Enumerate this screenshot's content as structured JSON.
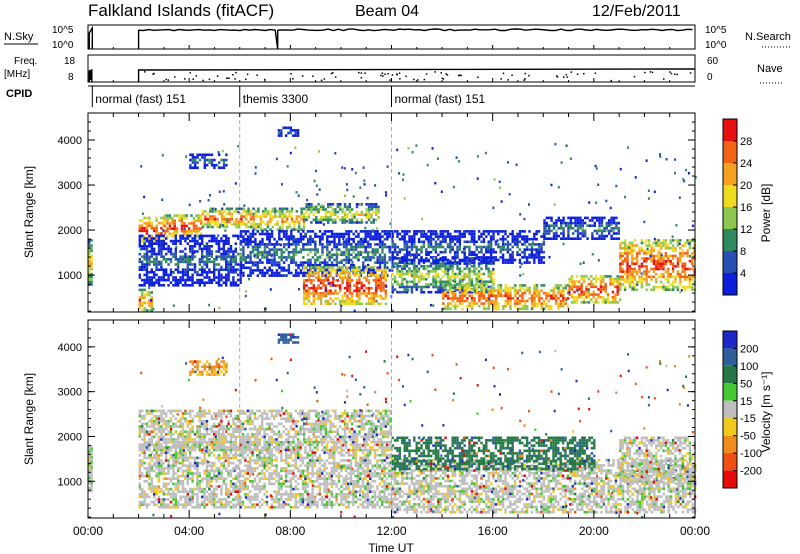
{
  "header": {
    "station": "Falkland Islands (fitACF)",
    "beam": "Beam 04",
    "date": "12/Feb/2011"
  },
  "top_panels": {
    "nsky_label": "N.Sky",
    "nsky_ticks": [
      "10^5",
      "10^0"
    ],
    "nsearch_label": "N.Search",
    "freq_label": "Freq.",
    "freq_unit": "[MHz]",
    "freq_ticks": [
      "18",
      "8"
    ],
    "nave_label": "Nave",
    "nave_ticks": [
      "60",
      "0"
    ],
    "cpid_label": "CPID"
  },
  "cpid_segments": [
    {
      "label": "normal (fast) 151",
      "start": 0.17
    },
    {
      "label": "themis 3300",
      "start": 6.0
    },
    {
      "label": "normal (fast) 151",
      "start": 12.0
    }
  ],
  "axes": {
    "xlabel": "Time UT",
    "xticks": [
      "00:00",
      "04:00",
      "08:00",
      "12:00",
      "16:00",
      "20:00",
      "00:00"
    ],
    "ylabel": "Slant Range [km]",
    "yticks": [
      "1000",
      "2000",
      "3000",
      "4000"
    ]
  },
  "colorbars": {
    "power": {
      "label": "Power [dB]",
      "ticks": [
        "4",
        "8",
        "12",
        "16",
        "20",
        "24",
        "28"
      ],
      "colors": [
        "#0a1edc",
        "#2850b4",
        "#2f8a60",
        "#8cc850",
        "#f0dc1e",
        "#f5a01e",
        "#f06414",
        "#e81010"
      ]
    },
    "velocity": {
      "label": "Velocity [m s⁻¹]",
      "ticks": [
        "200",
        "100",
        "50",
        "15",
        "-15",
        "-50",
        "-100",
        "-200"
      ],
      "colors": [
        "#1e28c8",
        "#2d5f9b",
        "#237846",
        "#46c832",
        "#bebebe",
        "#f0c81e",
        "#f08c1e",
        "#f05014",
        "#e60a0a"
      ]
    }
  },
  "chart_data": [
    {
      "type": "heatmap",
      "name": "power",
      "x_unit": "hours UT",
      "y_unit": "km",
      "xlim": [
        0,
        24
      ],
      "ylim": [
        180,
        4600
      ],
      "value_unit": "dB",
      "value_range": [
        0,
        30
      ],
      "bands": [
        {
          "t0": 0.0,
          "t1": 0.15,
          "r0": 800,
          "r1": 1800,
          "p": 20
        },
        {
          "t0": 2.0,
          "t1": 3.0,
          "r0": 1750,
          "r1": 2300,
          "p": 27
        },
        {
          "t0": 3.0,
          "t1": 4.5,
          "r0": 1850,
          "r1": 2350,
          "p": 27
        },
        {
          "t0": 4.5,
          "t1": 6.5,
          "r0": 2050,
          "r1": 2500,
          "p": 24
        },
        {
          "t0": 6.5,
          "t1": 8.5,
          "r0": 2000,
          "r1": 2500,
          "p": 22
        },
        {
          "t0": 8.5,
          "t1": 11.5,
          "r0": 2150,
          "r1": 2600,
          "p": 18
        },
        {
          "t0": 2.0,
          "t1": 6.0,
          "r0": 800,
          "r1": 1900,
          "p": 8
        },
        {
          "t0": 6.0,
          "t1": 12.0,
          "r0": 1000,
          "r1": 2000,
          "p": 10
        },
        {
          "t0": 8.5,
          "t1": 11.8,
          "r0": 350,
          "r1": 1200,
          "p": 28
        },
        {
          "t0": 12.0,
          "t1": 16.0,
          "r0": 600,
          "r1": 1400,
          "p": 16
        },
        {
          "t0": 12.0,
          "t1": 18.0,
          "r0": 1300,
          "r1": 2000,
          "p": 8
        },
        {
          "t0": 14.0,
          "t1": 19.0,
          "r0": 250,
          "r1": 800,
          "p": 26
        },
        {
          "t0": 19.0,
          "t1": 21.0,
          "r0": 400,
          "r1": 1000,
          "p": 27
        },
        {
          "t0": 21.0,
          "t1": 24.0,
          "r0": 700,
          "r1": 1800,
          "p": 27
        },
        {
          "t0": 18.0,
          "t1": 21.0,
          "r0": 1800,
          "r1": 2300,
          "p": 10
        },
        {
          "t0": 2.0,
          "t1": 2.5,
          "r0": 200,
          "r1": 700,
          "p": 24
        },
        {
          "t0": 4.0,
          "t1": 5.5,
          "r0": 3400,
          "r1": 3700,
          "p": 10
        },
        {
          "t0": 7.5,
          "t1": 8.3,
          "r0": 4100,
          "r1": 4300,
          "p": 8
        }
      ]
    },
    {
      "type": "heatmap",
      "name": "velocity",
      "x_unit": "hours UT",
      "y_unit": "km",
      "xlim": [
        0,
        24
      ],
      "ylim": [
        180,
        4600
      ],
      "value_unit": "m/s",
      "value_range": [
        -250,
        250
      ],
      "bands": [
        {
          "t0": 0.0,
          "t1": 0.15,
          "r0": 800,
          "r1": 1800,
          "v": 0
        },
        {
          "t0": 2.0,
          "t1": 8.5,
          "r0": 1700,
          "r1": 2600,
          "v": 0
        },
        {
          "t0": 8.5,
          "t1": 12.0,
          "r0": 1900,
          "r1": 2600,
          "v": 0
        },
        {
          "t0": 2.0,
          "t1": 12.0,
          "r0": 400,
          "r1": 1900,
          "v": 0
        },
        {
          "t0": 12.0,
          "t1": 24.0,
          "r0": 300,
          "r1": 1500,
          "v": 0
        },
        {
          "t0": 21.0,
          "t1": 24.0,
          "r0": 1000,
          "r1": 2000,
          "v": 0
        },
        {
          "t0": 12.0,
          "t1": 20.0,
          "r0": 1300,
          "r1": 2000,
          "v": 60
        },
        {
          "t0": 4.0,
          "t1": 5.5,
          "r0": 3400,
          "r1": 3700,
          "v": -40
        },
        {
          "t0": 7.5,
          "t1": 8.3,
          "r0": 4100,
          "r1": 4300,
          "v": 120
        }
      ]
    }
  ]
}
